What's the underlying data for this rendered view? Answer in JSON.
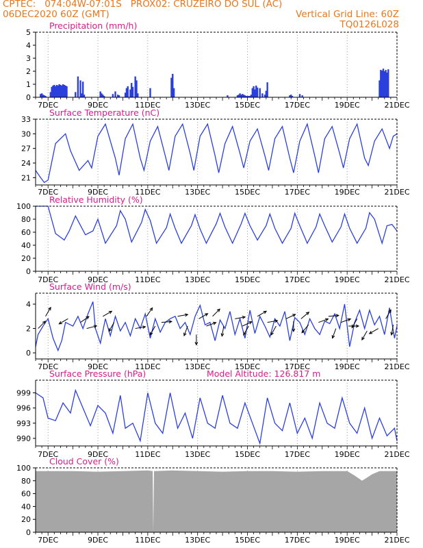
{
  "header": {
    "line1_left": "CPTEC:   074:04W-07:01S   PROX02: CRUZEIRO DO SUL (AC)",
    "line2_left": "06DEC2020 60Z (GMT)",
    "line2_right": "Vertical Grid Line: 60Z",
    "line3_right": "TQ0126L028"
  },
  "colors": {
    "header": "#e8761c",
    "title": "#d81b8c",
    "series": "#2b3fdc",
    "cloud": "#a6a6a6",
    "grid": "#8a8a8a"
  },
  "x_axis": {
    "start_day": 6.5,
    "end_day": 21,
    "tick_days": [
      7,
      9,
      11,
      13,
      15,
      17,
      19,
      21
    ],
    "tick_labels": [
      "7DEC",
      "9DEC",
      "11DEC",
      "13DEC",
      "15DEC",
      "17DEC",
      "19DEC",
      "21DEC"
    ]
  },
  "chart_data": [
    {
      "type": "bar",
      "title": "Precipitation (mm/h)",
      "ylim": [
        0,
        5
      ],
      "yticks": [
        0,
        1,
        2,
        3,
        4,
        5
      ],
      "x": [
        6.7,
        6.75,
        6.8,
        6.85,
        6.9,
        7.1,
        7.15,
        7.2,
        7.25,
        7.3,
        7.35,
        7.4,
        7.45,
        7.5,
        7.55,
        7.6,
        7.65,
        7.7,
        7.75,
        8.1,
        8.2,
        8.3,
        8.35,
        8.4,
        8.45,
        9.1,
        9.15,
        9.2,
        9.25,
        9.6,
        9.7,
        9.8,
        9.85,
        10.1,
        10.15,
        10.2,
        10.3,
        10.35,
        10.4,
        10.5,
        10.55,
        10.6,
        11.1,
        11.95,
        12.0,
        12.05,
        14.2,
        14.6,
        14.65,
        14.7,
        14.75,
        14.8,
        14.85,
        14.9,
        14.95,
        15.0,
        15.05,
        15.1,
        15.15,
        15.2,
        15.25,
        15.3,
        15.35,
        15.4,
        15.5,
        15.6,
        15.7,
        15.75,
        15.8,
        16.7,
        16.75,
        16.8,
        17.1,
        17.2,
        20.3,
        20.35,
        20.4,
        20.45,
        20.5,
        20.55,
        20.6,
        20.65
      ],
      "values": [
        0.25,
        0.3,
        0.2,
        0.15,
        0.1,
        0.4,
        0.8,
        0.9,
        0.95,
        0.85,
        0.95,
        0.9,
        1.0,
        0.95,
        0.9,
        1.0,
        0.95,
        0.9,
        0.85,
        0.4,
        1.6,
        1.3,
        0.3,
        1.2,
        0.2,
        0.45,
        0.3,
        0.2,
        0.1,
        0.25,
        0.45,
        0.2,
        0.15,
        0.35,
        0.7,
        0.85,
        0.6,
        1.1,
        0.8,
        1.6,
        1.3,
        0.3,
        0.7,
        1.5,
        1.8,
        0.7,
        0.15,
        0.15,
        0.2,
        0.3,
        0.2,
        0.25,
        0.2,
        0.15,
        0.1,
        0.1,
        0.1,
        0.1,
        0.2,
        0.7,
        0.85,
        0.6,
        0.9,
        0.75,
        0.7,
        0.3,
        0.2,
        0.5,
        1.15,
        0.15,
        0.2,
        0.1,
        0.25,
        0.15,
        1.3,
        2.1,
        2.05,
        2.2,
        2.0,
        2.1,
        1.9,
        2.15
      ],
      "grid": true
    },
    {
      "type": "line",
      "title": "Surface Temperature (nC)",
      "ylim": [
        19.5,
        33
      ],
      "yticks": [
        21,
        24,
        27,
        30,
        33
      ],
      "x": [
        6.5,
        6.7,
        6.85,
        7.0,
        7.3,
        7.7,
        7.9,
        8.25,
        8.6,
        8.75,
        9.0,
        9.3,
        9.7,
        9.85,
        10.1,
        10.4,
        10.7,
        10.85,
        11.1,
        11.4,
        11.7,
        11.85,
        12.1,
        12.4,
        12.7,
        12.85,
        13.1,
        13.4,
        13.7,
        13.85,
        14.1,
        14.4,
        14.7,
        14.85,
        15.1,
        15.4,
        15.7,
        15.85,
        16.1,
        16.4,
        16.7,
        16.85,
        17.1,
        17.4,
        17.7,
        17.85,
        18.1,
        18.4,
        18.7,
        18.85,
        19.1,
        19.4,
        19.7,
        19.85,
        20.1,
        20.4,
        20.7,
        20.85,
        21.0
      ],
      "values": [
        22.5,
        21.0,
        20.0,
        20.5,
        28.0,
        30.0,
        26.5,
        22.5,
        24.5,
        23.0,
        29.5,
        32.0,
        25.0,
        21.5,
        29.0,
        32.0,
        25.0,
        22.5,
        28.5,
        31.5,
        25.5,
        22.5,
        29.5,
        32.0,
        26.0,
        22.5,
        29.5,
        32.0,
        25.5,
        22.0,
        28.0,
        31.5,
        26.0,
        23.0,
        28.5,
        31.0,
        25.5,
        22.5,
        29.0,
        31.5,
        25.0,
        22.0,
        28.5,
        32.0,
        25.5,
        22.0,
        29.0,
        31.5,
        26.0,
        23.0,
        29.0,
        32.0,
        25.0,
        23.5,
        28.5,
        31.0,
        27.0,
        29.5,
        30.0
      ],
      "grid": true
    },
    {
      "type": "line",
      "title": "Relative Humidity (%)",
      "ylim": [
        0,
        100
      ],
      "yticks": [
        0,
        20,
        40,
        60,
        80,
        100
      ],
      "x": [
        6.5,
        6.7,
        7.0,
        7.3,
        7.65,
        7.85,
        8.1,
        8.5,
        8.8,
        9.0,
        9.3,
        9.75,
        9.9,
        10.1,
        10.35,
        10.75,
        10.9,
        11.1,
        11.35,
        11.75,
        11.9,
        12.1,
        12.35,
        12.75,
        12.9,
        13.1,
        13.35,
        13.75,
        13.9,
        14.1,
        14.4,
        14.75,
        14.9,
        15.1,
        15.4,
        15.75,
        15.9,
        16.1,
        16.4,
        16.75,
        16.9,
        17.1,
        17.4,
        17.75,
        17.9,
        18.1,
        18.4,
        18.75,
        18.9,
        19.1,
        19.4,
        19.75,
        19.9,
        20.1,
        20.4,
        20.6,
        20.8,
        21.0
      ],
      "values": [
        100,
        100,
        100,
        58,
        48,
        62,
        85,
        56,
        62,
        80,
        43,
        70,
        93,
        80,
        45,
        75,
        95,
        78,
        43,
        67,
        88,
        66,
        43,
        70,
        87,
        65,
        43,
        73,
        89,
        68,
        43,
        73,
        89,
        70,
        48,
        70,
        88,
        66,
        43,
        66,
        89,
        70,
        43,
        68,
        88,
        70,
        45,
        68,
        88,
        66,
        43,
        66,
        90,
        80,
        43,
        70,
        72,
        62
      ],
      "grid": true
    },
    {
      "type": "line",
      "title": "Surface Wind (m/s)",
      "ylim": [
        -0.5,
        4.9
      ],
      "yticks": [
        0,
        2,
        4
      ],
      "x": [
        6.5,
        6.6,
        6.8,
        7.0,
        7.2,
        7.4,
        7.55,
        7.7,
        8.0,
        8.2,
        8.4,
        8.6,
        8.8,
        8.9,
        9.1,
        9.3,
        9.5,
        9.7,
        9.9,
        10.1,
        10.3,
        10.5,
        10.7,
        10.9,
        11.1,
        11.3,
        11.5,
        11.7,
        11.9,
        12.1,
        12.3,
        12.5,
        12.7,
        12.9,
        13.1,
        13.3,
        13.5,
        13.7,
        13.9,
        14.1,
        14.3,
        14.5,
        14.7,
        14.9,
        15.1,
        15.3,
        15.5,
        15.7,
        15.9,
        16.1,
        16.3,
        16.5,
        16.7,
        16.9,
        17.1,
        17.3,
        17.5,
        17.7,
        17.9,
        18.1,
        18.3,
        18.5,
        18.7,
        18.9,
        19.1,
        19.3,
        19.5,
        19.7,
        19.9,
        20.1,
        20.3,
        20.5,
        20.7,
        20.9,
        21.0
      ],
      "values": [
        0.5,
        1.5,
        2.2,
        2.8,
        1.2,
        0.2,
        1.0,
        2.5,
        2.2,
        3.0,
        2.0,
        3.2,
        4.2,
        2.0,
        0.8,
        2.8,
        1.4,
        3.0,
        1.8,
        2.5,
        1.4,
        2.8,
        2.0,
        3.2,
        1.2,
        2.8,
        1.7,
        2.5,
        2.8,
        3.0,
        2.0,
        2.5,
        1.5,
        3.0,
        3.9,
        2.3,
        2.5,
        1.0,
        2.7,
        2.0,
        3.4,
        1.5,
        2.8,
        1.2,
        3.5,
        1.6,
        3.0,
        2.2,
        1.3,
        2.8,
        2.2,
        3.4,
        1.0,
        2.9,
        2.5,
        1.5,
        2.8,
        2.0,
        1.5,
        2.6,
        2.4,
        3.2,
        2.0,
        4.0,
        0.5,
        2.5,
        3.5,
        2.0,
        3.5,
        2.3,
        3.0,
        1.5,
        3.7,
        1.2,
        2.2
      ],
      "vectors_x": [
        6.6,
        6.9,
        7.8,
        8.3,
        8.55,
        9.2,
        9.65,
        10.5,
        10.95,
        11.3,
        11.55,
        12.2,
        12.6,
        12.95,
        13.05,
        13.35,
        13.6,
        14.05,
        14.5,
        14.8,
        15.05,
        15.4,
        15.8,
        16.15,
        16.55,
        16.85,
        17.15,
        17.45,
        17.85,
        18.25,
        18.55,
        18.75,
        19.05,
        19.4,
        19.8,
        20.25,
        20.55,
        20.85
      ],
      "vectors_y": [
        2.0,
        3.0,
        2.8,
        2.5,
        2.0,
        3.0,
        2.5,
        2.0,
        3.0,
        2.2,
        2.5,
        3.0,
        2.2,
        1.5,
        2.8,
        2.2,
        3.0,
        2.2,
        2.8,
        2.2,
        2.2,
        3.0,
        2.5,
        2.2,
        2.8,
        2.6,
        2.8,
        2.3,
        2.5,
        3.0,
        2.0,
        2.5,
        2.2,
        2.8,
        1.8,
        2.0,
        2.8,
        2.3
      ],
      "vectors_dir": [
        45,
        60,
        -150,
        35,
        15,
        30,
        -120,
        10,
        55,
        -120,
        5,
        10,
        -110,
        -90,
        30,
        20,
        45,
        -100,
        10,
        25,
        -120,
        30,
        10,
        -120,
        25,
        -90,
        40,
        -130,
        20,
        5,
        -110,
        20,
        0,
        -120,
        -120,
        -150,
        60,
        -100
      ],
      "grid": true
    },
    {
      "type": "line",
      "title": "Surface Pressure (hPa)",
      "subtitle": "Model Altitude: 126.817 m",
      "ylim": [
        988.5,
        1001.5
      ],
      "yticks": [
        990,
        993,
        996,
        999
      ],
      "x": [
        6.5,
        6.8,
        7.0,
        7.3,
        7.6,
        7.9,
        8.1,
        8.4,
        8.7,
        9.0,
        9.3,
        9.6,
        9.9,
        10.1,
        10.4,
        10.7,
        11.0,
        11.3,
        11.6,
        11.9,
        12.2,
        12.5,
        12.8,
        13.1,
        13.4,
        13.7,
        14.0,
        14.3,
        14.6,
        14.9,
        15.2,
        15.5,
        15.8,
        16.1,
        16.4,
        16.7,
        17.0,
        17.3,
        17.6,
        17.9,
        18.2,
        18.5,
        18.8,
        19.1,
        19.4,
        19.7,
        20.0,
        20.3,
        20.6,
        20.9,
        21.0
      ],
      "values": [
        999.0,
        998.0,
        994.0,
        993.5,
        997.0,
        995.0,
        999.5,
        996.0,
        992.5,
        996.5,
        995.0,
        991.0,
        998.5,
        992.0,
        993.0,
        989.5,
        999.0,
        993.0,
        991.0,
        999.0,
        992.0,
        995.0,
        990.0,
        998.0,
        993.0,
        992.0,
        998.5,
        993.0,
        992.0,
        997.0,
        993.0,
        989.0,
        998.0,
        993.0,
        991.5,
        997.0,
        991.0,
        994.0,
        990.0,
        997.0,
        993.0,
        992.0,
        998.0,
        993.0,
        991.0,
        996.0,
        990.0,
        994.0,
        990.5,
        992.0,
        989.5
      ],
      "grid": true
    },
    {
      "type": "area",
      "title": "Cloud Cover (%)",
      "ylim": [
        0,
        100
      ],
      "yticks": [
        0,
        20,
        40,
        60,
        80,
        100
      ],
      "x": [
        6.5,
        7.0,
        8.0,
        9.0,
        10.0,
        11.0,
        11.2,
        11.22,
        11.25,
        12.0,
        13.0,
        14.0,
        15.0,
        16.0,
        17.0,
        18.0,
        19.0,
        19.3,
        19.6,
        19.8,
        20.0,
        20.3,
        21.0
      ],
      "values": [
        95,
        95,
        95,
        94,
        95,
        96,
        95,
        0,
        95,
        96,
        95,
        94,
        95,
        95,
        94,
        95,
        95,
        88,
        80,
        85,
        90,
        95,
        95
      ],
      "grid": true
    }
  ]
}
